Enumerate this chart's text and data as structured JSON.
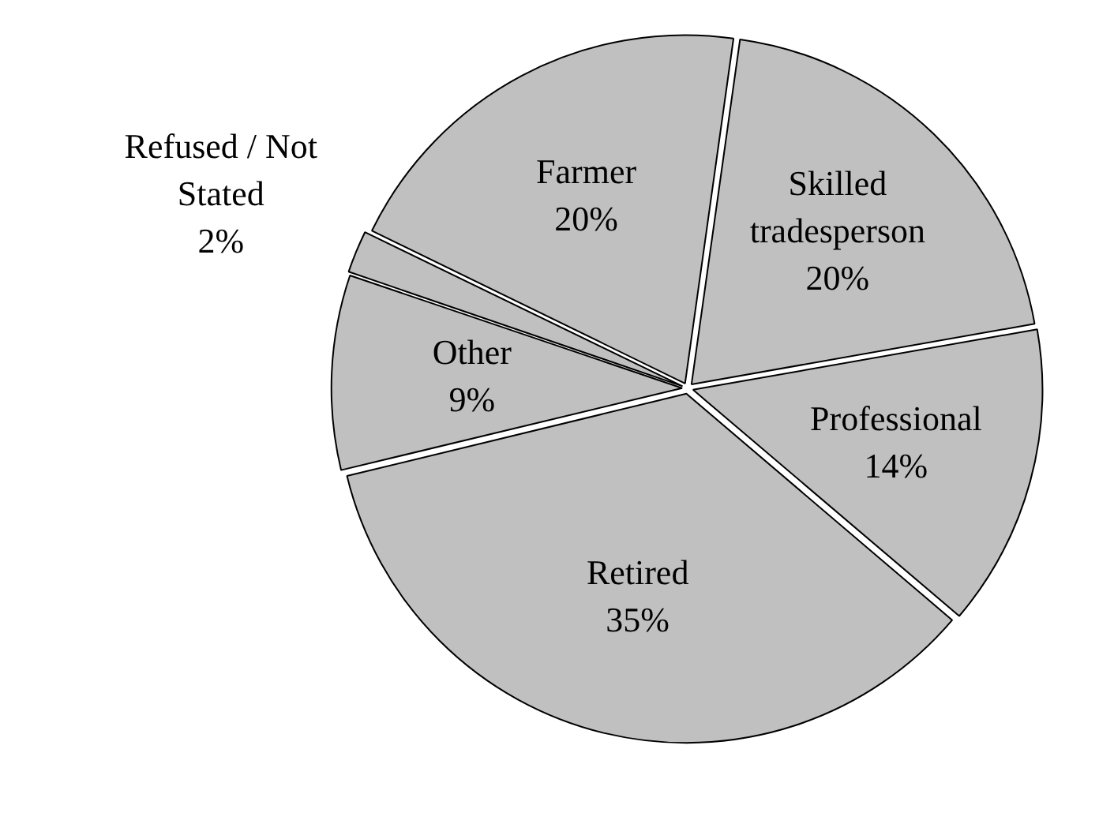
{
  "chart_data": {
    "type": "pie",
    "categories": [
      "Skilled tradesperson",
      "Professional",
      "Retired",
      "Other",
      "Refused / Not Stated",
      "Farmer"
    ],
    "values": [
      20,
      14,
      35,
      9,
      2,
      20
    ],
    "value_labels": [
      "20%",
      "14%",
      "35%",
      "9%",
      "2%",
      "20%"
    ],
    "colors": [
      "#c0c0c0",
      "#c0c0c0",
      "#c0c0c0",
      "#c0c0c0",
      "#c0c0c0",
      "#c0c0c0"
    ],
    "legend": false
  }
}
